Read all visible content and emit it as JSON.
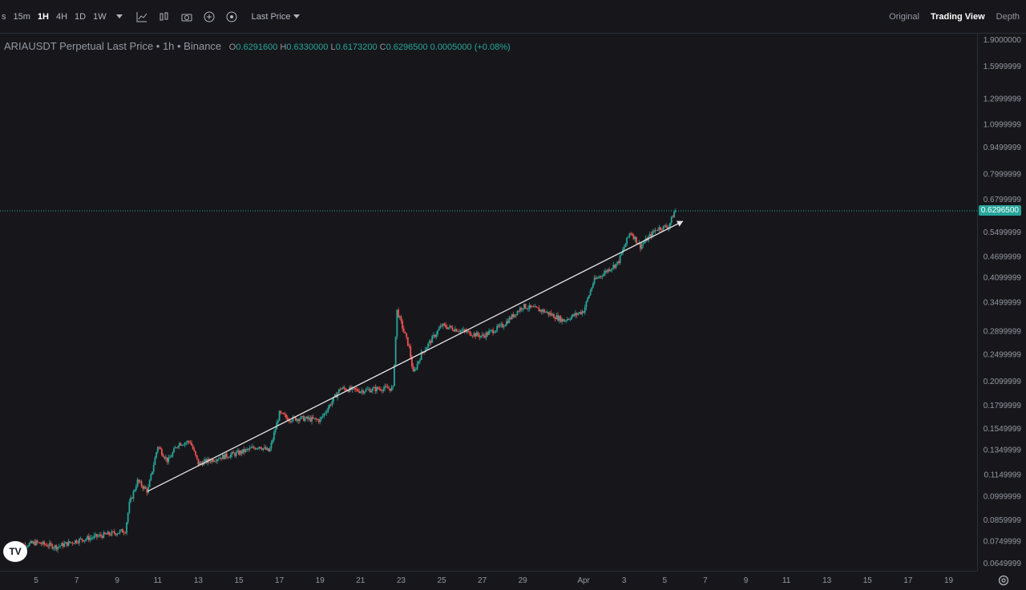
{
  "toolbar": {
    "timeframes": [
      {
        "label": "s",
        "active": false
      },
      {
        "label": "15m",
        "active": false
      },
      {
        "label": "1H",
        "active": true
      },
      {
        "label": "4H",
        "active": false
      },
      {
        "label": "1D",
        "active": false
      },
      {
        "label": "1W",
        "active": false
      }
    ],
    "icons": [
      "chevron-down-icon",
      "indicators-icon",
      "chart-type-icon",
      "camera-icon",
      "add-icon",
      "compare-icon"
    ],
    "last_price_label": "Last Price"
  },
  "views": [
    {
      "label": "Original",
      "active": false
    },
    {
      "label": "Trading View",
      "active": true
    },
    {
      "label": "Depth",
      "active": false
    }
  ],
  "legend": {
    "title": "ARIAUSDT Perpetual Last Price • 1h • Binance",
    "open_label": "O",
    "open": "0.6291600",
    "high_label": "H",
    "high": "0.6330000",
    "low_label": "L",
    "low": "0.6173200",
    "close_label": "C",
    "close": "0.6296500",
    "change": "0.0005000 (+0.08%)"
  },
  "chart_data": {
    "type": "candlestick",
    "scale": "log",
    "last_price": 0.62965,
    "last_price_label": "0.6296500",
    "y_tick_labels": [
      "1.9000000",
      "1.5999999",
      "1.2999999",
      "1.0999999",
      "0.9499999",
      "0.7999999",
      "0.6799999",
      "0.5499999",
      "0.4699999",
      "0.4099999",
      "0.3499999",
      "0.2899999",
      "0.2499999",
      "0.2099999",
      "0.1799999",
      "0.1549999",
      "0.1349999",
      "0.1149999",
      "0.0999999",
      "0.0859999",
      "0.0749999",
      "0.0649999"
    ],
    "y_ticks": [
      1.9,
      1.6,
      1.3,
      1.1,
      0.95,
      0.8,
      0.68,
      0.55,
      0.47,
      0.41,
      0.35,
      0.29,
      0.25,
      0.21,
      0.18,
      0.155,
      0.135,
      0.115,
      0.1,
      0.086,
      0.075,
      0.065
    ],
    "x_tick_labels": [
      "5",
      "7",
      "9",
      "11",
      "13",
      "15",
      "17",
      "19",
      "21",
      "23",
      "25",
      "27",
      "29",
      "Apr",
      "3",
      "5",
      "7",
      "9",
      "11",
      "13",
      "15",
      "17",
      "19"
    ],
    "x_ticks_day": [
      5,
      7,
      9,
      11,
      13,
      15,
      17,
      19,
      21,
      23,
      25,
      27,
      29,
      32,
      34,
      36,
      38,
      40,
      42,
      44,
      46,
      48,
      50
    ],
    "series_close": [
      [
        4,
        0.072
      ],
      [
        5,
        0.074
      ],
      [
        6,
        0.072
      ],
      [
        7,
        0.075
      ],
      [
        8,
        0.077
      ],
      [
        9,
        0.079
      ],
      [
        9.4,
        0.08
      ],
      [
        9.6,
        0.095
      ],
      [
        10,
        0.11
      ],
      [
        10.5,
        0.103
      ],
      [
        11,
        0.138
      ],
      [
        11.5,
        0.125
      ],
      [
        12,
        0.14
      ],
      [
        12.6,
        0.142
      ],
      [
        13,
        0.123
      ],
      [
        14,
        0.128
      ],
      [
        15,
        0.132
      ],
      [
        16,
        0.138
      ],
      [
        16.5,
        0.133
      ],
      [
        17,
        0.17
      ],
      [
        17.5,
        0.164
      ],
      [
        18,
        0.165
      ],
      [
        19,
        0.163
      ],
      [
        20,
        0.2
      ],
      [
        21,
        0.197
      ],
      [
        22,
        0.2
      ],
      [
        22.6,
        0.2
      ],
      [
        22.8,
        0.33
      ],
      [
        23.4,
        0.26
      ],
      [
        23.6,
        0.22
      ],
      [
        24,
        0.25
      ],
      [
        25,
        0.3
      ],
      [
        26,
        0.29
      ],
      [
        27,
        0.28
      ],
      [
        28,
        0.3
      ],
      [
        29,
        0.34
      ],
      [
        30,
        0.33
      ],
      [
        31,
        0.31
      ],
      [
        32,
        0.33
      ],
      [
        32.5,
        0.4
      ],
      [
        33.2,
        0.43
      ],
      [
        33.7,
        0.45
      ],
      [
        34.3,
        0.55
      ],
      [
        34.8,
        0.5
      ],
      [
        35.6,
        0.56
      ],
      [
        36.2,
        0.57
      ],
      [
        36.5,
        0.63
      ]
    ],
    "trendline": {
      "from": [
        10.5,
        0.103
      ],
      "to": [
        36.9,
        0.588
      ]
    }
  },
  "tv_logo": "TV"
}
